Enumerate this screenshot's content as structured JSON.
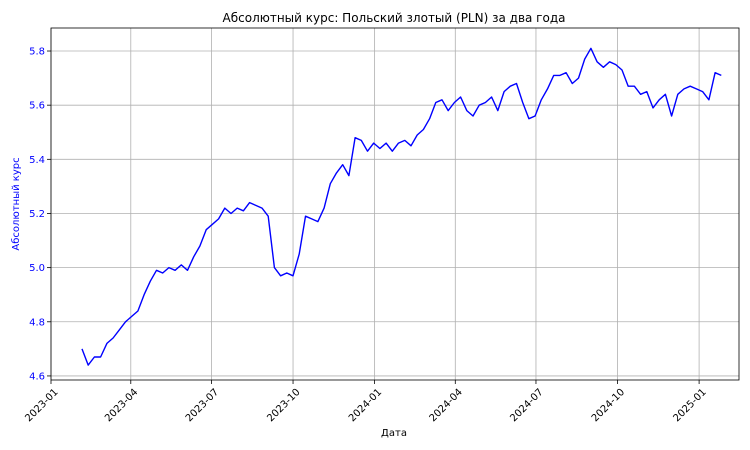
{
  "chart_data": {
    "type": "line",
    "title": "Абсолютный курс: Польский злотый (PLN) за два года",
    "xlabel": "Дата",
    "ylabel": "Абсолютный курс",
    "grid": true,
    "line_color": "#0000ff",
    "ylabel_color": "#0000ff",
    "x_range": [
      "2023-01-01",
      "2025-02-15"
    ],
    "ylim": [
      4.585,
      5.885
    ],
    "x_ticks": [
      "2023-01",
      "2023-04",
      "2023-07",
      "2023-10",
      "2024-01",
      "2024-04",
      "2024-07",
      "2024-10",
      "2025-01"
    ],
    "y_ticks": [
      "4.6",
      "4.8",
      "5.0",
      "5.2",
      "5.4",
      "5.6",
      "5.8"
    ],
    "series": [
      {
        "name": "",
        "x": [
          "2023-02-05",
          "2023-02-12",
          "2023-02-19",
          "2023-02-26",
          "2023-03-05",
          "2023-03-12",
          "2023-03-19",
          "2023-03-26",
          "2023-04-02",
          "2023-04-09",
          "2023-04-16",
          "2023-04-23",
          "2023-04-30",
          "2023-05-07",
          "2023-05-14",
          "2023-05-21",
          "2023-05-28",
          "2023-06-04",
          "2023-06-11",
          "2023-06-18",
          "2023-06-25",
          "2023-07-02",
          "2023-07-09",
          "2023-07-16",
          "2023-07-23",
          "2023-07-30",
          "2023-08-06",
          "2023-08-13",
          "2023-08-20",
          "2023-08-27",
          "2023-09-03",
          "2023-09-10",
          "2023-09-17",
          "2023-09-24",
          "2023-10-01",
          "2023-10-08",
          "2023-10-15",
          "2023-10-22",
          "2023-10-29",
          "2023-11-05",
          "2023-11-12",
          "2023-11-19",
          "2023-11-26",
          "2023-12-03",
          "2023-12-10",
          "2023-12-17",
          "2023-12-24",
          "2023-12-31",
          "2024-01-07",
          "2024-01-14",
          "2024-01-21",
          "2024-01-28",
          "2024-02-04",
          "2024-02-11",
          "2024-02-18",
          "2024-02-25",
          "2024-03-03",
          "2024-03-10",
          "2024-03-17",
          "2024-03-24",
          "2024-03-31",
          "2024-04-07",
          "2024-04-14",
          "2024-04-21",
          "2024-04-28",
          "2024-05-05",
          "2024-05-12",
          "2024-05-19",
          "2024-05-26",
          "2024-06-02",
          "2024-06-09",
          "2024-06-16",
          "2024-06-23",
          "2024-06-30",
          "2024-07-07",
          "2024-07-14",
          "2024-07-21",
          "2024-07-28",
          "2024-08-04",
          "2024-08-11",
          "2024-08-18",
          "2024-08-25",
          "2024-09-01",
          "2024-09-08",
          "2024-09-15",
          "2024-09-22",
          "2024-09-29",
          "2024-10-06",
          "2024-10-13",
          "2024-10-20",
          "2024-10-27",
          "2024-11-03",
          "2024-11-10",
          "2024-11-17",
          "2024-11-24",
          "2024-12-01",
          "2024-12-08",
          "2024-12-15",
          "2024-12-22",
          "2024-12-29",
          "2025-01-05",
          "2025-01-12",
          "2025-01-19",
          "2025-01-26"
        ],
        "values": [
          4.7,
          4.64,
          4.67,
          4.67,
          4.72,
          4.74,
          4.77,
          4.8,
          4.82,
          4.84,
          4.9,
          4.95,
          4.99,
          4.98,
          5.0,
          4.99,
          5.01,
          4.99,
          5.04,
          5.08,
          5.14,
          5.16,
          5.18,
          5.22,
          5.2,
          5.22,
          5.21,
          5.24,
          5.23,
          5.22,
          5.19,
          5.0,
          4.97,
          4.98,
          4.97,
          5.05,
          5.19,
          5.18,
          5.17,
          5.22,
          5.31,
          5.35,
          5.38,
          5.34,
          5.48,
          5.47,
          5.43,
          5.46,
          5.44,
          5.46,
          5.43,
          5.46,
          5.47,
          5.45,
          5.49,
          5.51,
          5.55,
          5.61,
          5.62,
          5.58,
          5.61,
          5.63,
          5.58,
          5.56,
          5.6,
          5.61,
          5.63,
          5.58,
          5.65,
          5.67,
          5.68,
          5.61,
          5.55,
          5.56,
          5.62,
          5.66,
          5.71,
          5.71,
          5.72,
          5.68,
          5.7,
          5.77,
          5.81,
          5.76,
          5.74,
          5.76,
          5.75,
          5.73,
          5.67,
          5.67,
          5.64,
          5.65,
          5.59,
          5.62,
          5.64,
          5.56,
          5.64,
          5.66,
          5.67,
          5.66,
          5.65,
          5.62,
          5.72,
          5.71
        ]
      }
    ]
  }
}
